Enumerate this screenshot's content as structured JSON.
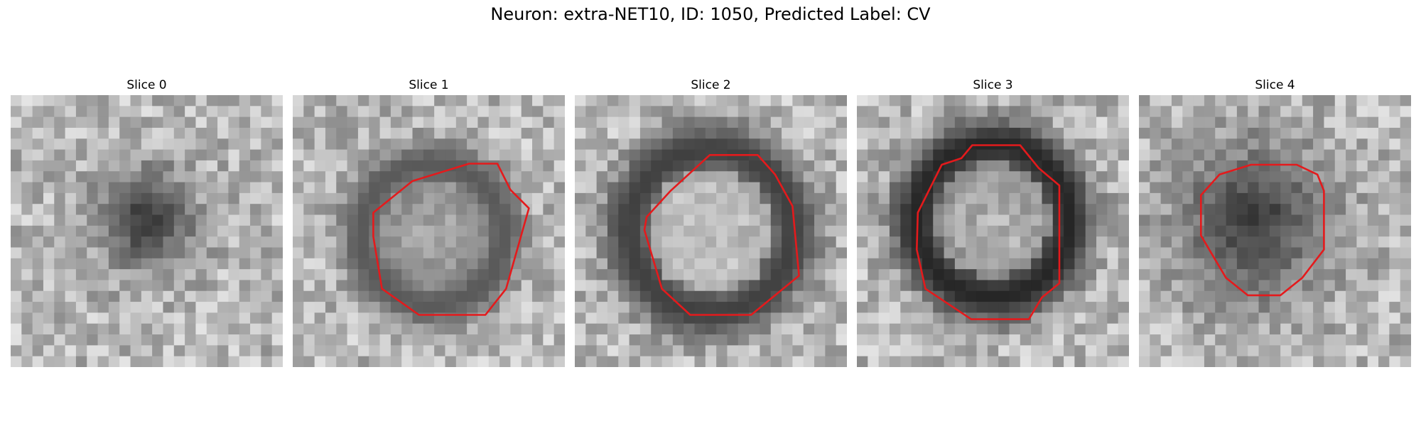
{
  "figure": {
    "title": "Neuron: extra-NET10, ID: 1050, Predicted Label: CV"
  },
  "slices": [
    {
      "title": "Slice 0",
      "has_contour": false
    },
    {
      "title": "Slice 1",
      "has_contour": true
    },
    {
      "title": "Slice 2",
      "has_contour": true
    },
    {
      "title": "Slice 3",
      "has_contour": true
    },
    {
      "title": "Slice 4",
      "has_contour": true
    }
  ],
  "colors": {
    "contour": "#e41a1c",
    "background": "#ffffff"
  }
}
